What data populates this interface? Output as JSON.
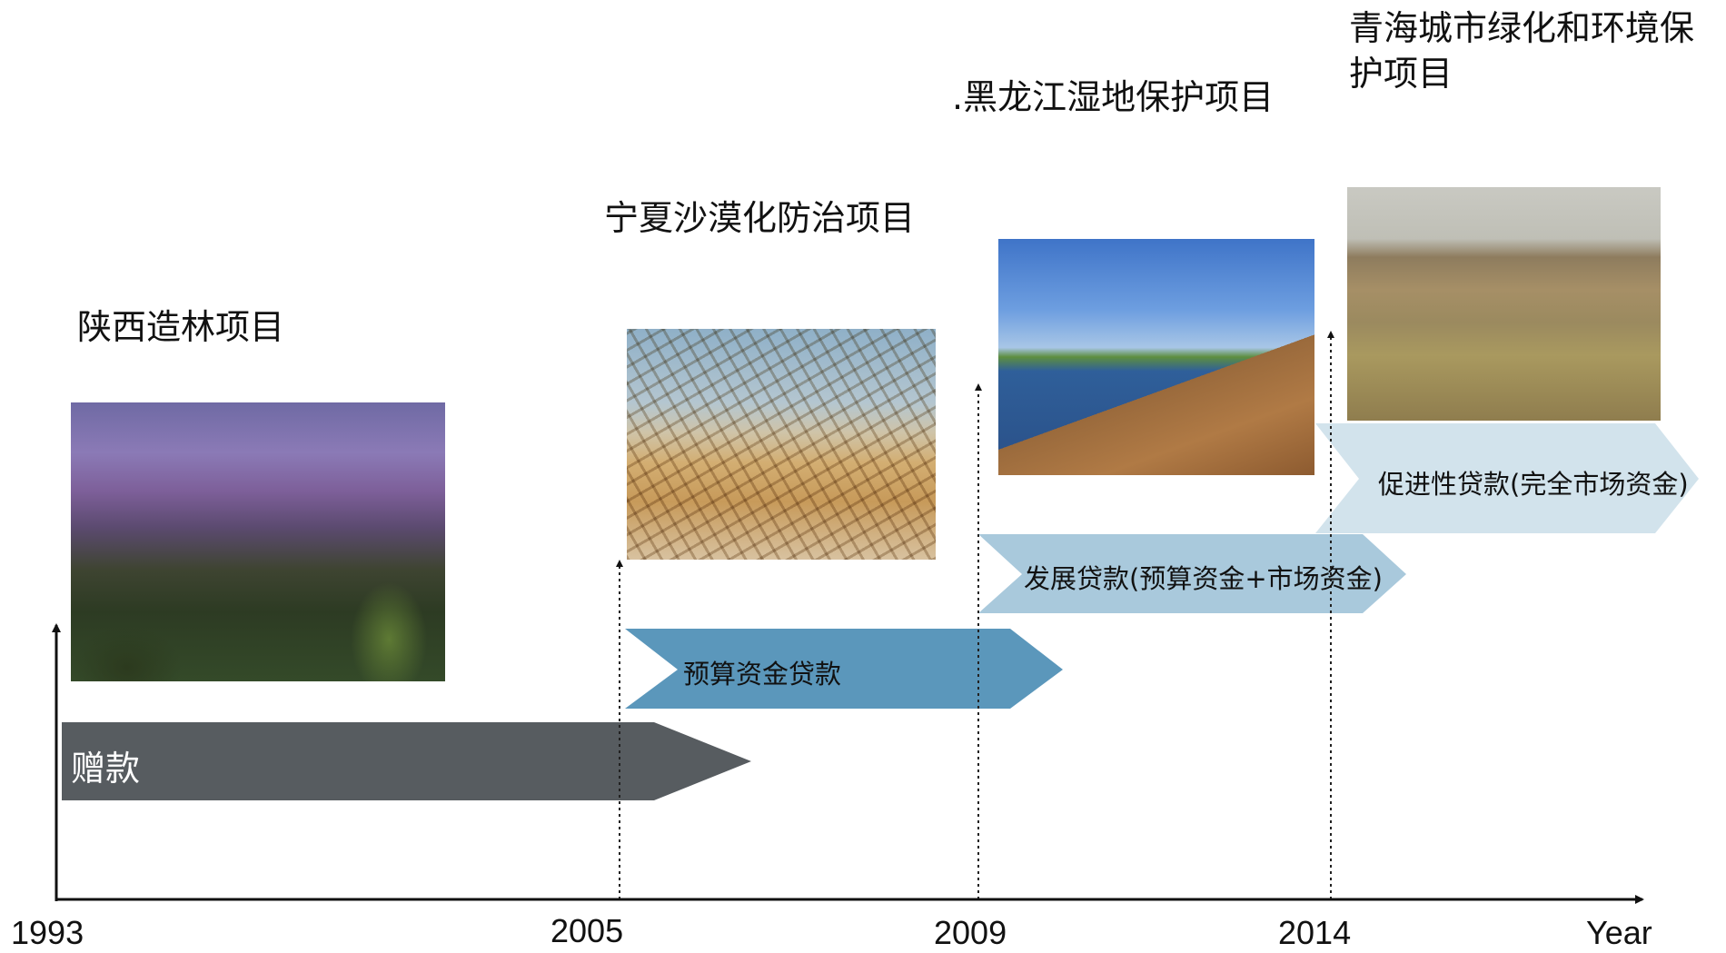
{
  "projects": [
    {
      "id": "shaanxi",
      "title": "陕西造林项目"
    },
    {
      "id": "ningxia",
      "title": "宁夏沙漠化防治项目"
    },
    {
      "id": "heilongjiang",
      "title": ".黑龙江湿地保护项目"
    },
    {
      "id": "qinghai",
      "title": "青海城市绿化和环境保护项目"
    }
  ],
  "timeline": {
    "years": [
      "1993",
      "2005",
      "2009",
      "2014"
    ],
    "axis_unit": "Year"
  },
  "funding_phases": [
    {
      "label": "赠款",
      "color": "#575c60"
    },
    {
      "label": "预算资金贷款",
      "color": "#5b97bb"
    },
    {
      "label": "发展贷款(预算资金+市场资金)",
      "color": "#a9c9dc"
    },
    {
      "label": "促进性贷款(完全市场资金)",
      "color": "#d2e3ec"
    }
  ],
  "images": [
    {
      "name": "mountain-forest-photo"
    },
    {
      "name": "desert-grid-photo"
    },
    {
      "name": "wetland-boardwalk-photo"
    },
    {
      "name": "grassland-hills-photo"
    }
  ]
}
